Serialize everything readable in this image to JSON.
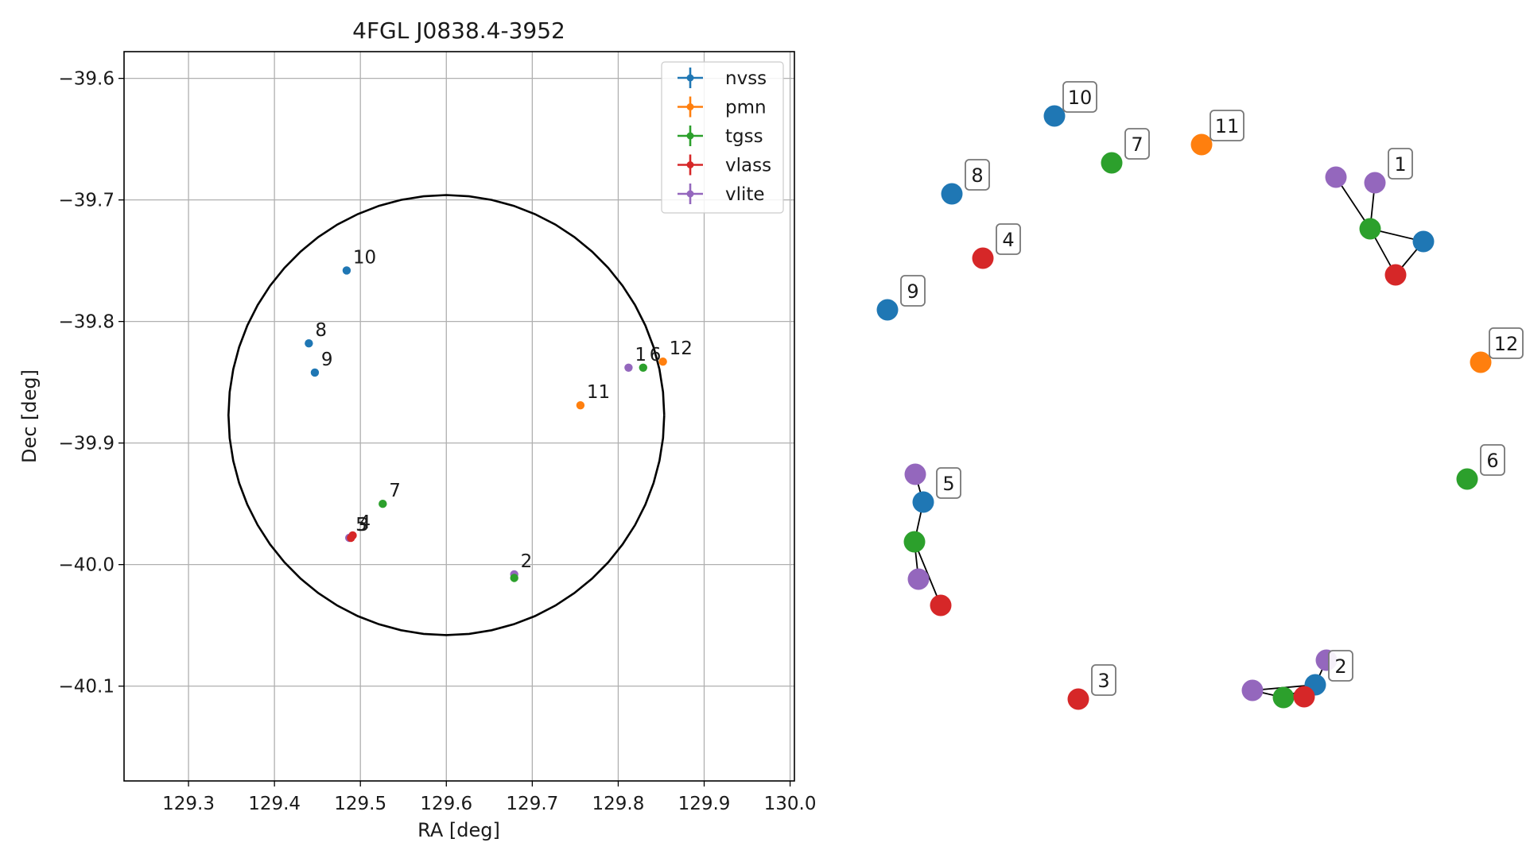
{
  "colors": {
    "nvss": "#1f77b4",
    "pmn": "#ff7f0e",
    "tgss": "#2ca02c",
    "vlass": "#d62728",
    "vlite": "#9467bd",
    "grid": "#b0b0b0",
    "circle": "#000000"
  },
  "chart_data": [
    {
      "type": "scatter",
      "title": "4FGL J0838.4-3952",
      "xlabel": "RA [deg]",
      "ylabel": "Dec [deg]",
      "xlim": [
        129.225,
        130.005
      ],
      "ylim": [
        -40.178,
        -39.578
      ],
      "xticks": [
        {
          "value": 129.3,
          "label": "129.3"
        },
        {
          "value": 129.4,
          "label": "129.4"
        },
        {
          "value": 129.5,
          "label": "129.5"
        },
        {
          "value": 129.6,
          "label": "129.6"
        },
        {
          "value": 129.7,
          "label": "129.7"
        },
        {
          "value": 129.8,
          "label": "129.8"
        },
        {
          "value": 129.9,
          "label": "129.9"
        },
        {
          "value": 130.0,
          "label": "130.0"
        }
      ],
      "yticks": [
        {
          "value": -39.6,
          "label": "−39.6"
        },
        {
          "value": -39.7,
          "label": "−39.7"
        },
        {
          "value": -39.8,
          "label": "−39.8"
        },
        {
          "value": -39.9,
          "label": "−39.9"
        },
        {
          "value": -40.0,
          "label": "−40.0"
        },
        {
          "value": -40.1,
          "label": "−40.1"
        }
      ],
      "grid": true,
      "legend": "top-right",
      "legend_entries": [
        "nvss",
        "pmn",
        "tgss",
        "vlass",
        "vlite"
      ],
      "error_ellipse": {
        "center_ra": 129.6,
        "center_dec": -39.877,
        "radius_ra": 0.2535,
        "radius_dec": 0.181
      },
      "points": [
        {
          "survey": "nvss",
          "ra": 129.484,
          "dec": -39.758,
          "label": "10"
        },
        {
          "survey": "nvss",
          "ra": 129.44,
          "dec": -39.818,
          "label": "8"
        },
        {
          "survey": "nvss",
          "ra": 129.447,
          "dec": -39.842,
          "label": "9"
        },
        {
          "survey": "vlite",
          "ra": 129.812,
          "dec": -39.838,
          "label": "1"
        },
        {
          "survey": "tgss",
          "ra": 129.829,
          "dec": -39.838,
          "label": "6"
        },
        {
          "survey": "pmn",
          "ra": 129.852,
          "dec": -39.833,
          "label": "12"
        },
        {
          "survey": "pmn",
          "ra": 129.756,
          "dec": -39.869,
          "label": "11"
        },
        {
          "survey": "tgss",
          "ra": 129.526,
          "dec": -39.95,
          "label": "7"
        },
        {
          "survey": "vlass",
          "ra": 129.491,
          "dec": -39.976,
          "label": "4"
        },
        {
          "survey": "vlite",
          "ra": 129.487,
          "dec": -39.978,
          "label": "5"
        },
        {
          "survey": "vlass",
          "ra": 129.489,
          "dec": -39.978,
          "label": "3"
        },
        {
          "survey": "vlite",
          "ra": 129.679,
          "dec": -40.008,
          "label": "2"
        },
        {
          "survey": "tgss",
          "ra": 129.679,
          "dec": -40.011,
          "label": ""
        }
      ]
    },
    {
      "type": "scatter",
      "title": "",
      "grid": false,
      "markers": [
        {
          "survey": "nvss",
          "label": "10"
        },
        {
          "survey": "tgss",
          "label": "7"
        },
        {
          "survey": "pmn",
          "label": "11"
        },
        {
          "survey": "nvss",
          "label": "8"
        },
        {
          "survey": "vlite",
          "label": ""
        },
        {
          "survey": "vlite",
          "label": "1"
        },
        {
          "survey": "tgss",
          "label": ""
        },
        {
          "survey": "nvss",
          "label": ""
        },
        {
          "survey": "vlass",
          "label": ""
        },
        {
          "survey": "vlass",
          "label": "4"
        },
        {
          "survey": "nvss",
          "label": "9"
        },
        {
          "survey": "pmn",
          "label": "12"
        },
        {
          "survey": "tgss",
          "label": "6"
        },
        {
          "survey": "vlite",
          "label": ""
        },
        {
          "survey": "nvss",
          "label": "5"
        },
        {
          "survey": "tgss",
          "label": ""
        },
        {
          "survey": "vlite",
          "label": ""
        },
        {
          "survey": "vlass",
          "label": ""
        },
        {
          "survey": "vlass",
          "label": "3"
        },
        {
          "survey": "vlite",
          "label": ""
        },
        {
          "survey": "nvss",
          "label": "2"
        },
        {
          "survey": "vlite",
          "label": ""
        },
        {
          "survey": "tgss",
          "label": ""
        },
        {
          "survey": "vlass",
          "label": ""
        }
      ]
    }
  ]
}
